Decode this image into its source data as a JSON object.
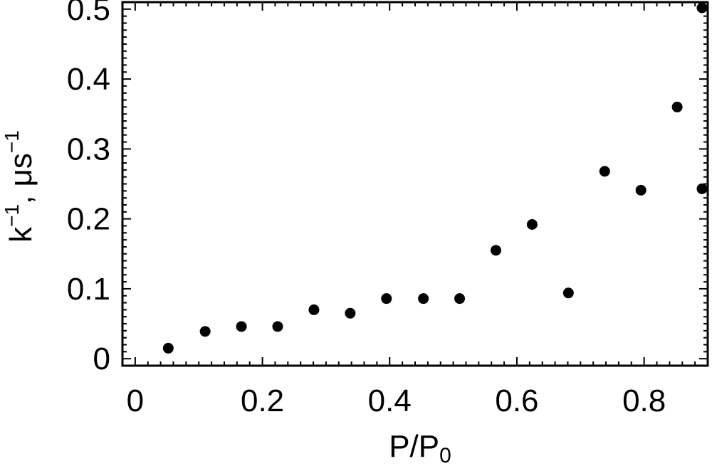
{
  "chart_data": {
    "type": "scatter",
    "title": "",
    "xlabel_base": "P/P",
    "xlabel_sub": "0",
    "ylabel_base": "k",
    "ylabel_sup1": "−1",
    "ylabel_mid": ", μs",
    "ylabel_sup2": "−1",
    "xlim": [
      -0.02,
      0.9
    ],
    "ylim": [
      -0.01,
      0.51
    ],
    "xticks": [
      0,
      0.2,
      0.4,
      0.6,
      0.8
    ],
    "xtick_labels": [
      "0",
      "0.2",
      "0.4",
      "0.6",
      "0.8"
    ],
    "yticks": [
      0,
      0.1,
      0.2,
      0.3,
      0.4,
      0.5
    ],
    "ytick_labels": [
      "0",
      "0.1",
      "0.2",
      "0.3",
      "0.4",
      "0.5"
    ],
    "grid": false,
    "series": [
      {
        "marker_color": "#000000",
        "points": [
          {
            "x": 0.052,
            "y": 0.015
          },
          {
            "x": 0.11,
            "y": 0.039
          },
          {
            "x": 0.167,
            "y": 0.046
          },
          {
            "x": 0.224,
            "y": 0.046
          },
          {
            "x": 0.281,
            "y": 0.07
          },
          {
            "x": 0.338,
            "y": 0.065
          },
          {
            "x": 0.395,
            "y": 0.086
          },
          {
            "x": 0.453,
            "y": 0.086
          },
          {
            "x": 0.51,
            "y": 0.086
          },
          {
            "x": 0.567,
            "y": 0.155
          },
          {
            "x": 0.624,
            "y": 0.192
          },
          {
            "x": 0.681,
            "y": 0.094
          },
          {
            "x": 0.738,
            "y": 0.268
          },
          {
            "x": 0.795,
            "y": 0.241
          },
          {
            "x": 0.852,
            "y": 0.36
          },
          {
            "x": 0.909,
            "y": 0.243
          },
          {
            "x": 0.966,
            "y": 0.505
          }
        ]
      }
    ]
  }
}
